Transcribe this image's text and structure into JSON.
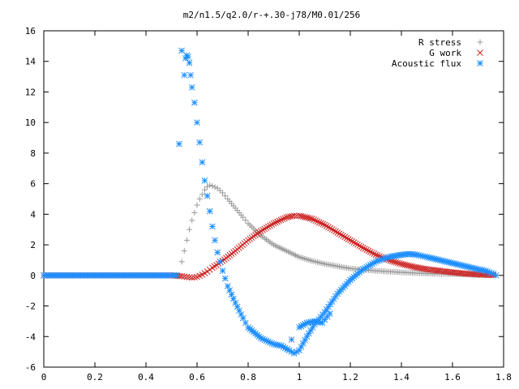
{
  "chart_data": {
    "type": "scatter",
    "title": "m2/n1.5/q2.0/r-+.30-j78/M0.01/256",
    "xlabel": "",
    "ylabel": "",
    "xlim": [
      0,
      1.8
    ],
    "ylim": [
      -6,
      16
    ],
    "x_ticks": [
      "0",
      "0.2",
      "0.4",
      "0.6",
      "0.8",
      "1",
      "1.2",
      "1.4",
      "1.6",
      "1.8"
    ],
    "y_ticks": [
      "16",
      "14",
      "12",
      "10",
      "8",
      "6",
      "4",
      "2",
      "0",
      "-2",
      "-4",
      "-6"
    ],
    "grid": false,
    "legend_position": "top-right",
    "series": [
      {
        "name": "R stress",
        "marker": "plus",
        "color": "#999999",
        "points": [
          [
            0.0,
            0
          ],
          [
            0.1,
            0
          ],
          [
            0.2,
            0
          ],
          [
            0.3,
            0
          ],
          [
            0.4,
            0
          ],
          [
            0.5,
            0
          ],
          [
            0.53,
            0
          ],
          [
            0.54,
            0.9
          ],
          [
            0.55,
            1.6
          ],
          [
            0.56,
            2.3
          ],
          [
            0.57,
            3.0
          ],
          [
            0.58,
            3.6
          ],
          [
            0.59,
            4.1
          ],
          [
            0.6,
            4.6
          ],
          [
            0.61,
            5.0
          ],
          [
            0.62,
            5.3
          ],
          [
            0.63,
            5.6
          ],
          [
            0.64,
            5.8
          ],
          [
            0.65,
            5.9
          ],
          [
            0.66,
            5.85
          ],
          [
            0.68,
            5.7
          ],
          [
            0.7,
            5.4
          ],
          [
            0.72,
            5.0
          ],
          [
            0.75,
            4.4
          ],
          [
            0.78,
            3.8
          ],
          [
            0.8,
            3.4
          ],
          [
            0.85,
            2.6
          ],
          [
            0.9,
            2.0
          ],
          [
            0.95,
            1.6
          ],
          [
            1.0,
            1.2
          ],
          [
            1.05,
            0.95
          ],
          [
            1.1,
            0.75
          ],
          [
            1.2,
            0.45
          ],
          [
            1.3,
            0.3
          ],
          [
            1.4,
            0.2
          ],
          [
            1.5,
            0.12
          ],
          [
            1.6,
            0.08
          ],
          [
            1.7,
            0.04
          ],
          [
            1.77,
            0.02
          ]
        ]
      },
      {
        "name": "G work",
        "marker": "cross",
        "color": "#cc2222",
        "points": [
          [
            0.0,
            0
          ],
          [
            0.1,
            0
          ],
          [
            0.2,
            0
          ],
          [
            0.3,
            0
          ],
          [
            0.4,
            0
          ],
          [
            0.5,
            0
          ],
          [
            0.54,
            -0.05
          ],
          [
            0.56,
            -0.1
          ],
          [
            0.58,
            -0.15
          ],
          [
            0.6,
            -0.1
          ],
          [
            0.62,
            0.05
          ],
          [
            0.64,
            0.25
          ],
          [
            0.66,
            0.5
          ],
          [
            0.7,
            0.95
          ],
          [
            0.75,
            1.6
          ],
          [
            0.8,
            2.3
          ],
          [
            0.85,
            2.9
          ],
          [
            0.9,
            3.4
          ],
          [
            0.95,
            3.8
          ],
          [
            0.98,
            3.9
          ],
          [
            1.0,
            3.9
          ],
          [
            1.05,
            3.7
          ],
          [
            1.1,
            3.3
          ],
          [
            1.15,
            2.8
          ],
          [
            1.2,
            2.3
          ],
          [
            1.25,
            1.8
          ],
          [
            1.3,
            1.35
          ],
          [
            1.35,
            1.0
          ],
          [
            1.4,
            0.75
          ],
          [
            1.45,
            0.55
          ],
          [
            1.5,
            0.4
          ],
          [
            1.55,
            0.3
          ],
          [
            1.6,
            0.2
          ],
          [
            1.65,
            0.12
          ],
          [
            1.7,
            0.06
          ],
          [
            1.76,
            0.02
          ]
        ]
      },
      {
        "name": "Acoustic flux",
        "marker": "star",
        "color": "#1f8fff",
        "points": [
          [
            0.0,
            0
          ],
          [
            0.1,
            0
          ],
          [
            0.2,
            0
          ],
          [
            0.3,
            0
          ],
          [
            0.4,
            0
          ],
          [
            0.5,
            0
          ],
          [
            0.52,
            0
          ],
          [
            0.53,
            8.6
          ],
          [
            0.54,
            14.7
          ],
          [
            0.55,
            13.1
          ],
          [
            0.555,
            14.2
          ],
          [
            0.56,
            14.4
          ],
          [
            0.565,
            14.3
          ],
          [
            0.57,
            13.9
          ],
          [
            0.575,
            13.1
          ],
          [
            0.58,
            12.3
          ],
          [
            0.59,
            11.3
          ],
          [
            0.6,
            10.0
          ],
          [
            0.61,
            8.7
          ],
          [
            0.62,
            7.4
          ],
          [
            0.63,
            6.2
          ],
          [
            0.64,
            5.2
          ],
          [
            0.65,
            4.2
          ],
          [
            0.66,
            3.2
          ],
          [
            0.67,
            2.3
          ],
          [
            0.68,
            1.5
          ],
          [
            0.7,
            0.3
          ],
          [
            0.72,
            -0.7
          ],
          [
            0.75,
            -1.8
          ],
          [
            0.78,
            -2.8
          ],
          [
            0.8,
            -3.4
          ],
          [
            0.85,
            -4.1
          ],
          [
            0.9,
            -4.5
          ],
          [
            0.93,
            -4.6
          ],
          [
            0.96,
            -4.9
          ],
          [
            0.98,
            -5.1
          ],
          [
            1.0,
            -4.9
          ],
          [
            1.03,
            -4.0
          ],
          [
            1.06,
            -3.2
          ],
          [
            1.1,
            -2.4
          ],
          [
            1.15,
            -1.2
          ],
          [
            1.2,
            -0.3
          ],
          [
            1.25,
            0.4
          ],
          [
            1.3,
            0.9
          ],
          [
            1.35,
            1.2
          ],
          [
            1.4,
            1.35
          ],
          [
            1.43,
            1.4
          ],
          [
            1.46,
            1.35
          ],
          [
            1.5,
            1.2
          ],
          [
            1.55,
            1.0
          ],
          [
            1.6,
            0.8
          ],
          [
            1.65,
            0.6
          ],
          [
            1.7,
            0.4
          ],
          [
            1.73,
            0.3
          ],
          [
            1.76,
            0.1
          ],
          [
            1.77,
            0.0
          ],
          [
            0.97,
            -4.2
          ],
          [
            1.0,
            -3.4
          ],
          [
            1.03,
            -3.1
          ],
          [
            1.06,
            -3.0
          ],
          [
            1.09,
            -3.1
          ],
          [
            1.1,
            -2.9
          ],
          [
            1.12,
            -2.5
          ]
        ]
      }
    ]
  }
}
